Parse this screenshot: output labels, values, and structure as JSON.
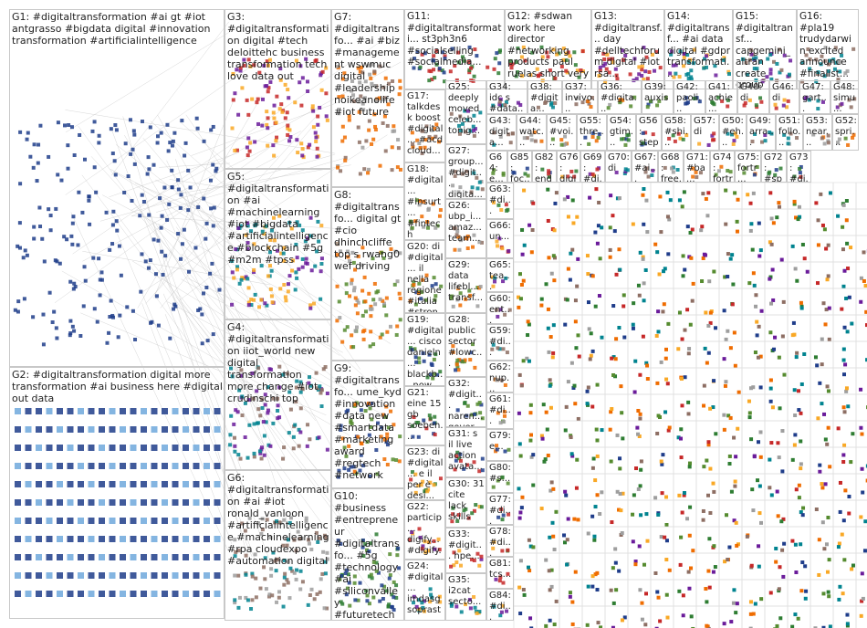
{
  "groups": [
    {
      "label": "G1: #digitaltransformation #ai gt #iot antgrasso #bigdata digital #innovation transformation #artificialintelligence"
    },
    {
      "label": "G2: #digitaltransformation digital more transformation #ai business here #digital out data"
    },
    {
      "label": "G3: #digitaltransformation digital #tech deloittehc business transformation tech love data out"
    },
    {
      "label": "G5: #digitaltransformation #ai #machinelearning #iot #bigdata #artificialintelligence #blockchain #5g #m2m #tpss"
    },
    {
      "label": "G4: #digitaltransformation iiot_world new digital transformation more change #iot crudinschi top"
    },
    {
      "label": "G6: #digitaltransformation #ai #iot ronald_vanloon #artificialintelligence #machinelearning #rpa cloudexpo #automation digital"
    },
    {
      "label": "G7: #digitaltransfo... #ai #biz #management wswmuc digital #leadership noikeanolife #iot future"
    },
    {
      "label": "G8: #digitaltransfo... digital gt #cio dhinchcliffe top s rwang0 wef driving"
    },
    {
      "label": "G9: #digitaltransfo... ume_kyd #innovation #data new #smartdata #marketing award #regtech #network"
    },
    {
      "label": "G10: #business #entrepreneur #digitaltransfo... #5g #technology #ai #siliconvalley #futuretech #iot #internetofthin..."
    },
    {
      "label": "G11: #digitaltransformati... st3ph3n6 #socialselling #socialmedia..."
    },
    {
      "label": "G12: #sdwan work here director #networking products paul ruelas short very"
    },
    {
      "label": "G13: #digitaltransf... day #delltechforum digital #iot rsa..."
    },
    {
      "label": "G14: #digitaltransf... #ai data digital #gdpr transformati..."
    },
    {
      "label": "G15: #digitaltransf... capgemini_ altran create group world..."
    },
    {
      "label": "G16: #pla19 trudydarwin excited announce #finalist..."
    },
    {
      "label": "G17: talkdesk boost #digital... #acd cloud..."
    },
    {
      "label": "G18: #digital... #insurt... #fintech wiprodi... types..."
    },
    {
      "label": "G20: di #digital... il nella regione #italia #strong..."
    },
    {
      "label": "G19: #digital... cisco danieln... blackb... now..."
    },
    {
      "label": "G21: eine 15 gb soeben..."
    },
    {
      "label": "G23: di #digital... e il per è desi..."
    },
    {
      "label": "G22: particip... digify... #digify..."
    },
    {
      "label": "G24: #digital... imdasg soprast..."
    },
    {
      "label": "G25: deeply moved celeb... tonig..."
    },
    {
      "label": "G27: group... #digit... digita..."
    },
    {
      "label": "G26: ubp_i... amaz... team..."
    },
    {
      "label": "G29: data lifebl... transf..."
    },
    {
      "label": "G28: public sector #lowc..."
    },
    {
      "label": "G32: #digit... naren... gover..."
    },
    {
      "label": "G31: s il live action avata..."
    },
    {
      "label": "G30: 31 cite lack skills"
    },
    {
      "label": "G33: #digit... hpe..."
    },
    {
      "label": "G35: i2cat secto..."
    },
    {
      "label": "G34: idc s #data..."
    },
    {
      "label": "G38: #digita..."
    },
    {
      "label": "G37: invivo..."
    },
    {
      "label": "G36: #digita..."
    },
    {
      "label": "G39: auxis"
    },
    {
      "label": "G42: paoli..."
    },
    {
      "label": "G41: achie..."
    },
    {
      "label": "G40: di"
    },
    {
      "label": "G46: di"
    },
    {
      "label": "G47: gart..."
    },
    {
      "label": "G48: simu..."
    },
    {
      "label": "G43: digita..."
    },
    {
      "label": "G44: watc..."
    },
    {
      "label": "G45: #voi..."
    },
    {
      "label": "G55: thre..."
    },
    {
      "label": "G54: gtim..."
    },
    {
      "label": "G56: step..."
    },
    {
      "label": "G58: #shi..."
    },
    {
      "label": "G57: di"
    },
    {
      "label": "G50: #eh..."
    },
    {
      "label": "G49: arra..."
    },
    {
      "label": "G51: follo..."
    },
    {
      "label": "G53: near..."
    },
    {
      "label": "G52: spri..."
    },
    {
      "label": "G64: e..."
    },
    {
      "label": "G85: foc..."
    },
    {
      "label": "G82: end..."
    },
    {
      "label": "G76: digi..."
    },
    {
      "label": "G69: #di..."
    },
    {
      "label": "G70: di"
    },
    {
      "label": "G67: #ai..."
    },
    {
      "label": "G68: free..."
    },
    {
      "label": "G71: #ba..."
    },
    {
      "label": "G74: fortr..."
    },
    {
      "label": "G75: fortr..."
    },
    {
      "label": "G72: #sp..."
    },
    {
      "label": "G73: #di..."
    },
    {
      "label": "G63: #di..."
    },
    {
      "label": "G66: un..."
    },
    {
      "label": "G65: tea..."
    },
    {
      "label": "G60: ent..."
    },
    {
      "label": "G59: #di..."
    },
    {
      "label": "G62: nup..."
    },
    {
      "label": "G61: #di..."
    },
    {
      "label": "G79: e..."
    },
    {
      "label": "G80: #s..."
    },
    {
      "label": "G77: #di..."
    },
    {
      "label": "G78: #di..."
    },
    {
      "label": "G81: tcs..."
    },
    {
      "label": "G84: #di..."
    }
  ]
}
